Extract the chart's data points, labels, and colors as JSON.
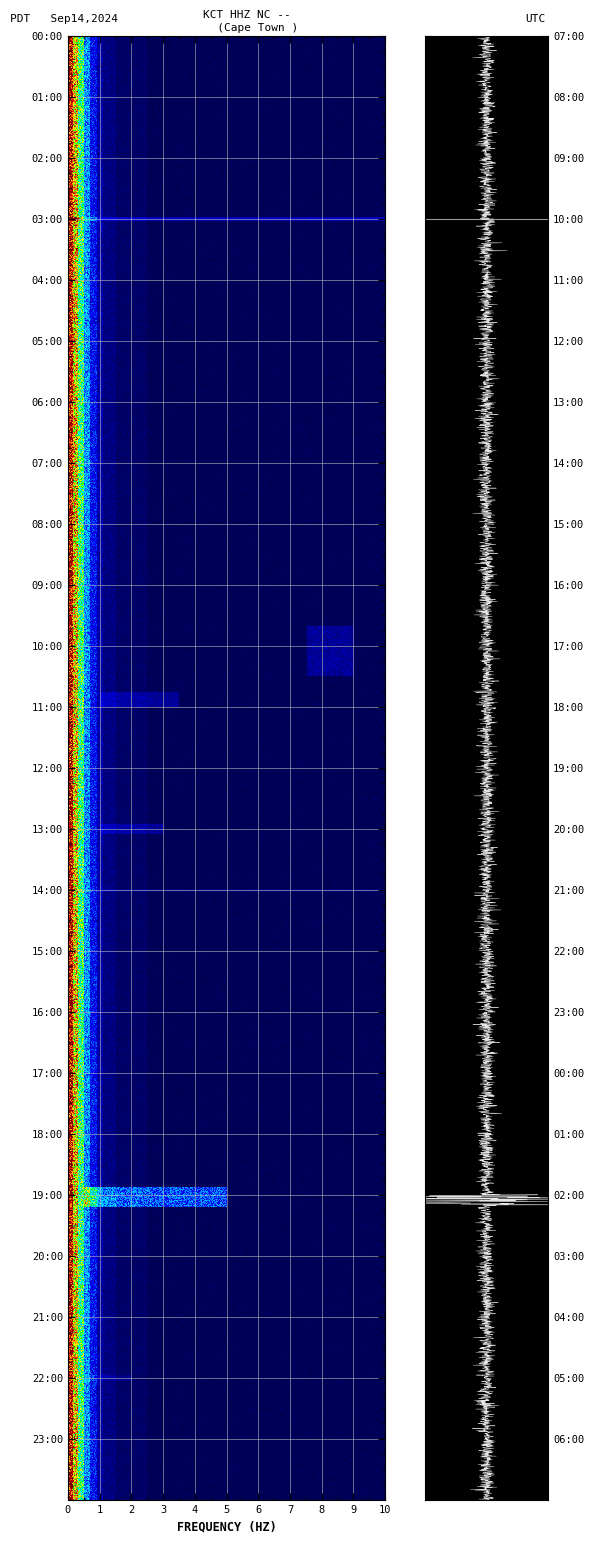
{
  "title_left": "PDT   Sep14,2024",
  "title_center": "KCT HHZ NC --\n         (Cape Town )",
  "title_right": "UTC",
  "xlabel": "FREQUENCY (HZ)",
  "left_yticks": [
    "00:00",
    "01:00",
    "02:00",
    "03:00",
    "04:00",
    "05:00",
    "06:00",
    "07:00",
    "08:00",
    "09:00",
    "10:00",
    "11:00",
    "12:00",
    "13:00",
    "14:00",
    "15:00",
    "16:00",
    "17:00",
    "18:00",
    "19:00",
    "20:00",
    "21:00",
    "22:00",
    "23:00"
  ],
  "right_yticks": [
    "07:00",
    "08:00",
    "09:00",
    "10:00",
    "11:00",
    "12:00",
    "13:00",
    "14:00",
    "15:00",
    "16:00",
    "17:00",
    "18:00",
    "19:00",
    "20:00",
    "21:00",
    "22:00",
    "23:00",
    "00:00",
    "01:00",
    "02:00",
    "03:00",
    "04:00",
    "05:00",
    "06:00"
  ],
  "xticks": [
    0,
    1,
    2,
    3,
    4,
    5,
    6,
    7,
    8,
    9,
    10
  ],
  "freq_max": 10,
  "time_hours": 24,
  "bg_color": "#000000",
  "fig_bg": "#ffffff",
  "font_color": "#000000",
  "grid_color": "#a0a0a0",
  "font_size": 7.5,
  "title_font_size": 8,
  "colormap_nodes": [
    [
      0.0,
      "#00004B"
    ],
    [
      0.08,
      "#000080"
    ],
    [
      0.18,
      "#0000CD"
    ],
    [
      0.28,
      "#0000FF"
    ],
    [
      0.38,
      "#0080FF"
    ],
    [
      0.48,
      "#00BFFF"
    ],
    [
      0.55,
      "#00FFFF"
    ],
    [
      0.62,
      "#00FF80"
    ],
    [
      0.68,
      "#00FF00"
    ],
    [
      0.74,
      "#80FF00"
    ],
    [
      0.8,
      "#FFFF00"
    ],
    [
      0.87,
      "#FFA500"
    ],
    [
      0.93,
      "#FF4500"
    ],
    [
      0.97,
      "#FF0000"
    ],
    [
      1.0,
      "#8B0000"
    ]
  ]
}
